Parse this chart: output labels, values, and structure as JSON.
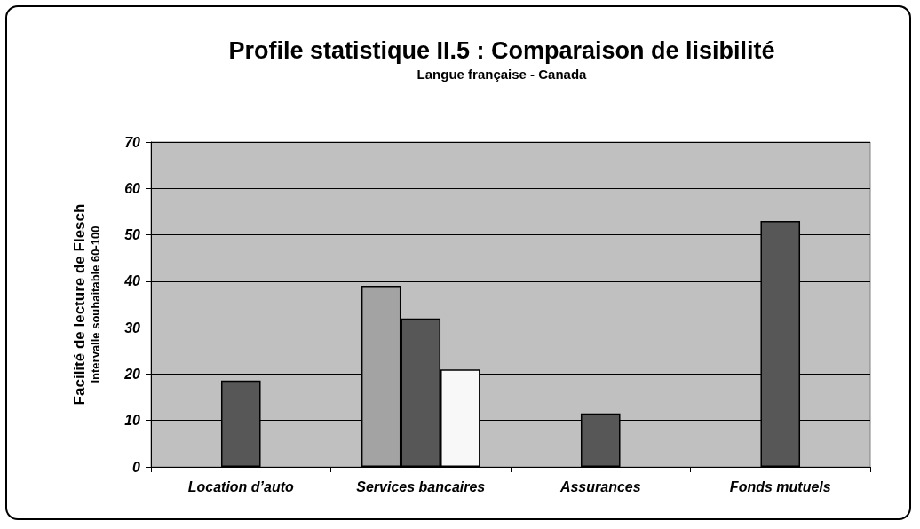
{
  "chart_data": {
    "type": "bar",
    "title": "Profile statistique II.5 : Comparaison de lisibilité",
    "subtitle": "Langue française - Canada",
    "ylabel": "Facilité de lecture de Flesch\nIntervalle souhaitable 60-100",
    "categories": [
      "Location d’auto",
      "Services bancaires",
      "Assurances",
      "Fonds mutuels"
    ],
    "series": [
      {
        "color": "#a3a3a3",
        "values": [
          null,
          39,
          null,
          null
        ]
      },
      {
        "color": "#575757",
        "values": [
          18.6,
          32,
          11.5,
          53
        ]
      },
      {
        "color": "#f8f8f8",
        "values": [
          null,
          21,
          null,
          null
        ]
      }
    ],
    "ylim": [
      0,
      70
    ],
    "yticks": [
      0,
      10,
      20,
      30,
      40,
      50,
      60,
      70
    ],
    "grid": "y"
  }
}
